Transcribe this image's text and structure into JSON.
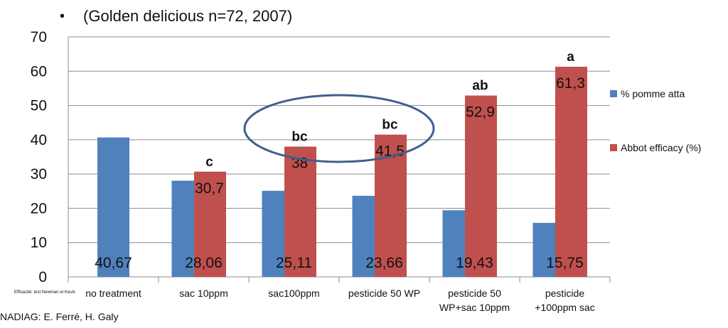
{
  "header": {
    "bullet": "•",
    "title": "(Golden delicious  n=72, 2007)"
  },
  "footer": {
    "credit": "NADIAG: E. Ferré, H. Galy",
    "note": "Efficacité: test Newman et Keuls"
  },
  "colors": {
    "series_blue": "#4f81bd",
    "series_red": "#c0504d",
    "gridline": "#8c8c8c",
    "ellipse": "#3f5f8f"
  },
  "chart_data": {
    "type": "bar",
    "title": "(Golden delicious  n=72, 2007)",
    "categories": [
      [
        "no treatment"
      ],
      [
        "sac 10ppm"
      ],
      [
        "sac100ppm"
      ],
      [
        "pesticide 50 WP"
      ],
      [
        "pesticide 50",
        "WP+sac 10ppm"
      ],
      [
        "pesticide",
        "+100ppm sac"
      ]
    ],
    "series": [
      {
        "name": "% pomme atta",
        "values": [
          40.67,
          28.06,
          25.11,
          23.66,
          19.43,
          15.75
        ],
        "labels": [
          "40,67",
          "28,06",
          "25,11",
          "23,66",
          "19,43",
          "15,75"
        ]
      },
      {
        "name": "Abbot efficacy (%)",
        "values": [
          null,
          30.7,
          38,
          41.5,
          52.9,
          61.3
        ],
        "labels": [
          "",
          "30,7",
          "38",
          "41,5",
          "52,9",
          "61,3"
        ],
        "significance": [
          "",
          "c",
          "bc",
          "bc",
          "ab",
          "a"
        ]
      }
    ],
    "ylim": [
      0,
      70
    ],
    "yticks": [
      0,
      10,
      20,
      30,
      40,
      50,
      60,
      70
    ],
    "grid": true,
    "legend_position": "right",
    "annotation": "ellipse around sac100ppm and pesticide 50 WP"
  }
}
